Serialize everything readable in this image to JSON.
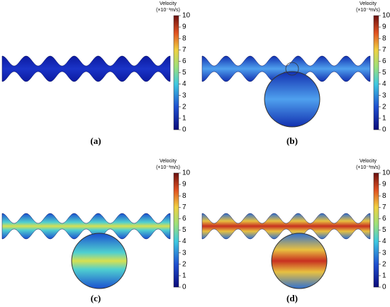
{
  "colorbar": {
    "title": "Velocity",
    "unit": "(×10⁻³m/s)",
    "ticks": [
      0,
      1,
      2,
      3,
      4,
      5,
      6,
      7,
      8,
      9,
      10
    ]
  },
  "panels": [
    {
      "label": "(a)"
    },
    {
      "label": "(b)"
    },
    {
      "label": "(c)"
    },
    {
      "label": "(d)"
    }
  ]
}
